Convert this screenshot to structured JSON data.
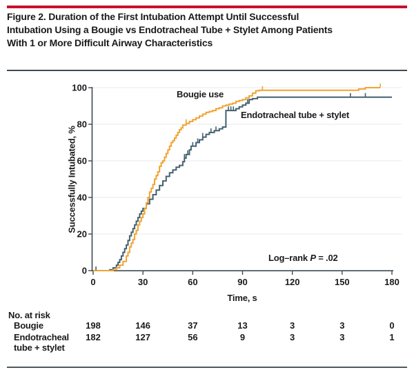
{
  "figure": {
    "accent_color": "#C8102E",
    "title_lines": [
      "Figure 2. Duration of the First Intubation Attempt Until Successful",
      "Intubation Using a Bougie vs Endotracheal Tube + Stylet Among Patients",
      "With 1 or More Difficult Airway Characteristics"
    ]
  },
  "chart_data": {
    "type": "line",
    "subtype": "kaplan-meier-step",
    "xlabel": "Time, s",
    "ylabel": "Successfully Intubated, %",
    "xlim": [
      0,
      180
    ],
    "ylim": [
      0,
      100
    ],
    "xticks": [
      0,
      30,
      60,
      90,
      120,
      150,
      180
    ],
    "yticks": [
      0,
      20,
      40,
      60,
      80,
      100
    ],
    "grid": "horizontal",
    "grid_color": "#E9E9E9",
    "axis_color": "#3E4A52",
    "annotation": {
      "prefix": "Log–rank ",
      "stat": "P",
      "suffix": " = .02"
    },
    "series": [
      {
        "name": "Endotracheal tube + stylet",
        "color": "#44606F",
        "points": [
          [
            0,
            0
          ],
          [
            10,
            0.5
          ],
          [
            12,
            1.5
          ],
          [
            14,
            3
          ],
          [
            15,
            4.5
          ],
          [
            16,
            6
          ],
          [
            17,
            8
          ],
          [
            18,
            10
          ],
          [
            19,
            12
          ],
          [
            20,
            14
          ],
          [
            21,
            16.5
          ],
          [
            22,
            19
          ],
          [
            23,
            21
          ],
          [
            24,
            23
          ],
          [
            25,
            25
          ],
          [
            26,
            27
          ],
          [
            27,
            29
          ],
          [
            28,
            31
          ],
          [
            29,
            32.5
          ],
          [
            30,
            34
          ],
          [
            32,
            36.5
          ],
          [
            34,
            39
          ],
          [
            36,
            41.5
          ],
          [
            38,
            44
          ],
          [
            40,
            46.5
          ],
          [
            42,
            49
          ],
          [
            44,
            51.5
          ],
          [
            46,
            53.5
          ],
          [
            48,
            55
          ],
          [
            50,
            56.5
          ],
          [
            52,
            57.5
          ],
          [
            54,
            59.5
          ],
          [
            55,
            61.5
          ],
          [
            56,
            63.5
          ],
          [
            58,
            66
          ],
          [
            59,
            68
          ],
          [
            62,
            70
          ],
          [
            64,
            71.5
          ],
          [
            66,
            73
          ],
          [
            68,
            74.5
          ],
          [
            70,
            75.5
          ],
          [
            73,
            76.5
          ],
          [
            76,
            77.5
          ],
          [
            78,
            78.5
          ],
          [
            80,
            87.5
          ],
          [
            86,
            88.5
          ],
          [
            88,
            89.5
          ],
          [
            90,
            90.5
          ],
          [
            92,
            91.5
          ],
          [
            94,
            93.5
          ],
          [
            96,
            94
          ],
          [
            99,
            94.8
          ],
          [
            180,
            94.8
          ]
        ],
        "censor_marks": [
          [
            1.7,
            0
          ],
          [
            55,
            61.5
          ],
          [
            57,
            63.5
          ],
          [
            60,
            68
          ],
          [
            63,
            70
          ],
          [
            66,
            73
          ],
          [
            71,
            75.5
          ],
          [
            74,
            76.5
          ],
          [
            81.5,
            87.5
          ],
          [
            83,
            87.5
          ],
          [
            84.5,
            87.5
          ],
          [
            93,
            91.5
          ],
          [
            155,
            94.8
          ],
          [
            164,
            94.8
          ]
        ]
      },
      {
        "name": "Bougie use",
        "color": "#F0A330",
        "points": [
          [
            0,
            0
          ],
          [
            12,
            0.5
          ],
          [
            14,
            1.5
          ],
          [
            16,
            3
          ],
          [
            18,
            5
          ],
          [
            20,
            8
          ],
          [
            21,
            10
          ],
          [
            22,
            13
          ],
          [
            23,
            15
          ],
          [
            24,
            17
          ],
          [
            25,
            20
          ],
          [
            26,
            22
          ],
          [
            27,
            25
          ],
          [
            28,
            27
          ],
          [
            29,
            29
          ],
          [
            30,
            31
          ],
          [
            31,
            34
          ],
          [
            32,
            37
          ],
          [
            33,
            40
          ],
          [
            34,
            43
          ],
          [
            35,
            45
          ],
          [
            36,
            47
          ],
          [
            37,
            50
          ],
          [
            38,
            52
          ],
          [
            39,
            54
          ],
          [
            40,
            57
          ],
          [
            41,
            59
          ],
          [
            42,
            60
          ],
          [
            43,
            62
          ],
          [
            44,
            64
          ],
          [
            45,
            66
          ],
          [
            46,
            68
          ],
          [
            47,
            70
          ],
          [
            48,
            71
          ],
          [
            49,
            72.5
          ],
          [
            50,
            74
          ],
          [
            51,
            75.5
          ],
          [
            52,
            77
          ],
          [
            53,
            78
          ],
          [
            54,
            79.5
          ],
          [
            56,
            80.5
          ],
          [
            58,
            81.5
          ],
          [
            60,
            82.5
          ],
          [
            62,
            83.5
          ],
          [
            64,
            84.5
          ],
          [
            66,
            85.5
          ],
          [
            68,
            86.5
          ],
          [
            70,
            87
          ],
          [
            72,
            87.5
          ],
          [
            74,
            88.5
          ],
          [
            76,
            89
          ],
          [
            78,
            90
          ],
          [
            80,
            90.5
          ],
          [
            82,
            91
          ],
          [
            84,
            91.5
          ],
          [
            86,
            92.5
          ],
          [
            88,
            93
          ],
          [
            90,
            93.5
          ],
          [
            92,
            94.5
          ],
          [
            94,
            95.5
          ],
          [
            96,
            97
          ],
          [
            98,
            98.3
          ],
          [
            100,
            98.6
          ],
          [
            160,
            99.3
          ],
          [
            164,
            100
          ],
          [
            173,
            100
          ]
        ],
        "censor_marks": [
          [
            56,
            80.5
          ],
          [
            102,
            98.6
          ],
          [
            173,
            100
          ]
        ]
      }
    ],
    "legend_position": "inline-labels"
  },
  "risk_table": {
    "title": "No. at risk",
    "columns_t": [
      0,
      30,
      60,
      90,
      120,
      150,
      180
    ],
    "rows": [
      {
        "label_lines": [
          "Bougie"
        ],
        "values": [
          "198",
          "146",
          "37",
          "13",
          "3",
          "3",
          "0"
        ]
      },
      {
        "label_lines": [
          "Endotracheal",
          "tube + stylet"
        ],
        "values": [
          "182",
          "127",
          "56",
          "9",
          "3",
          "3",
          "1"
        ]
      }
    ]
  }
}
